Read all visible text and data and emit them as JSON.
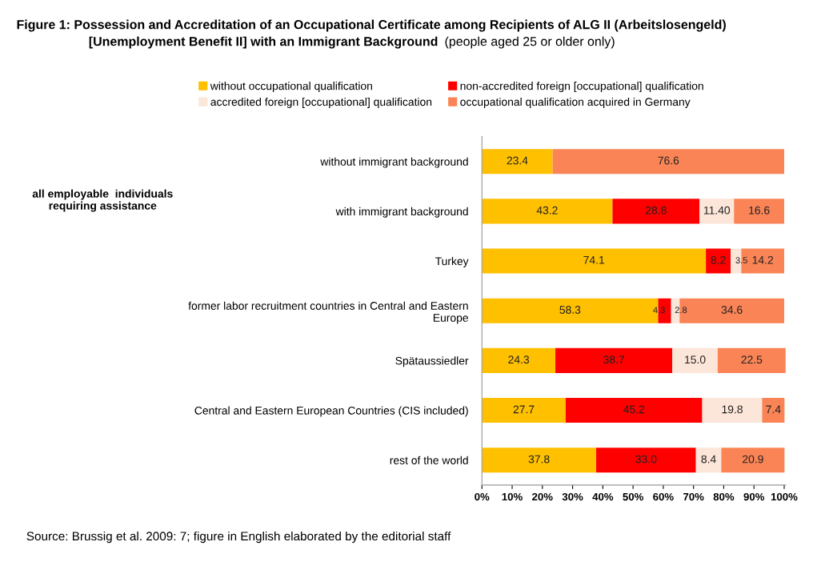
{
  "chart_data": {
    "type": "bar",
    "orientation": "horizontal",
    "stacked": true,
    "title": "Figure 1: Possession and Accreditation of an Occupational Certificate among Recipients of ALG II (Arbeitslosengeld)\n[Unemployment Benefit II] with an Immigrant Background",
    "subtitle": "(people aged 25 or older only)",
    "categories": [
      "without immigrant background",
      "with immigrant background",
      "Turkey",
      "former labor recruitment countries in Central and Eastern\nEurope",
      "Spätaussiedler",
      "Central and Eastern European Countries (CIS included)",
      "rest of the world"
    ],
    "series": [
      {
        "name": "without occupational qualification",
        "color": "#ffc000",
        "values": [
          23.4,
          43.2,
          74.1,
          58.3,
          24.3,
          27.7,
          37.8
        ],
        "value_labels": [
          "23.4",
          "43.2",
          "74.1",
          "58.3",
          "24.3",
          "27.7",
          "37.8"
        ]
      },
      {
        "name": "non-accredited foreign [occupational] qualification",
        "color": "#ff0000",
        "values": [
          null,
          28.8,
          8.2,
          4.3,
          38.7,
          45.2,
          33.0
        ],
        "value_labels": [
          null,
          "28.8",
          "8.2",
          "4.3",
          "38.7",
          "45.2",
          "33.0"
        ]
      },
      {
        "name": "accredited foreign [occupational] qualification",
        "color": "#fce6d9",
        "values": [
          null,
          11.4,
          3.5,
          2.8,
          15.0,
          19.8,
          8.4
        ],
        "value_labels": [
          null,
          "11.40",
          "3.5",
          "2.8",
          "15.0",
          "19.8",
          "8.4"
        ]
      },
      {
        "name": "occupational qualification acquired in Germany",
        "color": "#fa8455",
        "values": [
          76.6,
          16.6,
          14.2,
          34.6,
          22.5,
          7.4,
          20.9
        ],
        "value_labels": [
          "76.6",
          "16.6",
          "14.2",
          "34.6",
          "22.5",
          "7.4",
          "20.9"
        ]
      }
    ],
    "xlim": [
      0,
      100.5
    ],
    "xticks": [
      {
        "value": 0,
        "label": "0%"
      },
      {
        "value": 10,
        "label": "10%"
      },
      {
        "value": 20,
        "label": "20%"
      },
      {
        "value": 30,
        "label": "30%"
      },
      {
        "value": 40,
        "label": "40%"
      },
      {
        "value": 50,
        "label": "50%"
      },
      {
        "value": 60,
        "label": "60%"
      },
      {
        "value": 70,
        "label": "70%"
      },
      {
        "value": 80,
        "label": "80%"
      },
      {
        "value": 90,
        "label": "90%"
      },
      {
        "value": 100,
        "label": "100%"
      }
    ],
    "grid": false,
    "legend": "top",
    "annotations": [
      "all employable  individuals\nrequiring assistance",
      "Source: Brussig et al. 2009: 7; figure in English elaborated by the editorial staff"
    ]
  }
}
